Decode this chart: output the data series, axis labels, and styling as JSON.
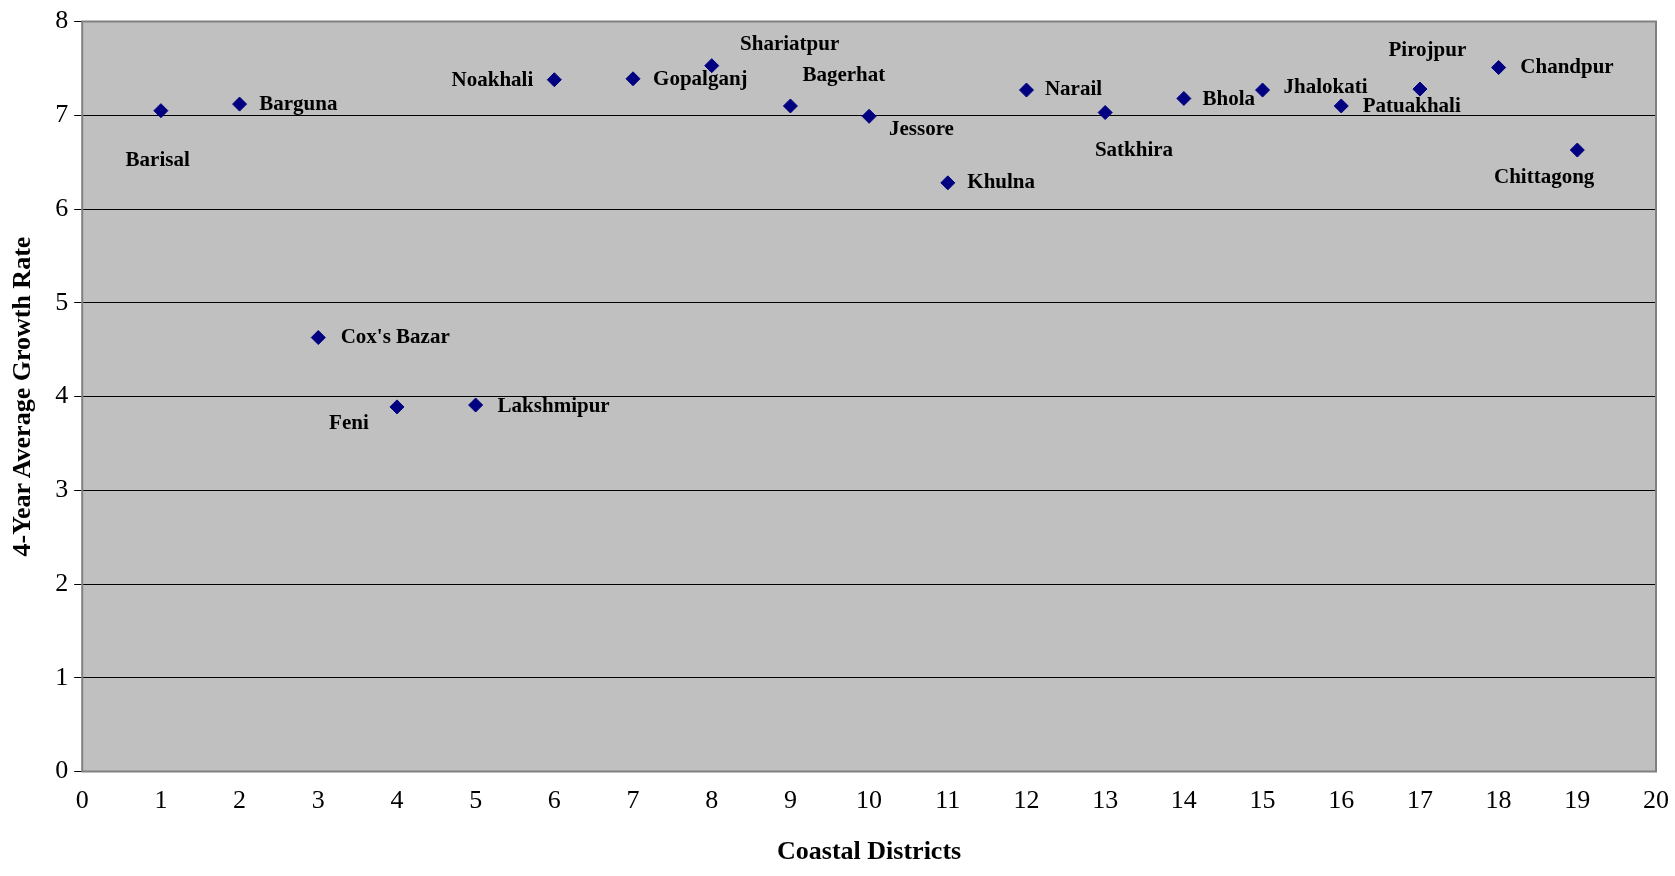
{
  "chart_data": {
    "type": "scatter",
    "xlabel": "Coastal Districts",
    "ylabel": "4-Year Average Growth Rate",
    "x": [
      1,
      2,
      3,
      4,
      5,
      6,
      7,
      8,
      9,
      10,
      11,
      12,
      13,
      14,
      15,
      16,
      17,
      18,
      19
    ],
    "values": [
      7.05,
      7.12,
      4.63,
      3.89,
      3.91,
      7.38,
      7.39,
      7.53,
      7.1,
      6.99,
      6.28,
      7.27,
      7.03,
      7.18,
      7.27,
      7.1,
      7.28,
      7.51,
      6.63
    ],
    "color": "#000080",
    "marker": "diamond",
    "grid": "y",
    "legend": false,
    "xlim": [
      0,
      20
    ],
    "xticks": [
      0,
      1,
      2,
      3,
      4,
      5,
      6,
      7,
      8,
      9,
      10,
      11,
      12,
      13,
      14,
      15,
      16,
      17,
      18,
      19,
      20
    ],
    "ylim": [
      0,
      8
    ],
    "yticks": [
      0,
      1,
      2,
      3,
      4,
      5,
      6,
      7,
      8
    ],
    "annotations": [
      {
        "text": "Barisal",
        "x": 1,
        "y": 7.05
      },
      {
        "text": "Barguna",
        "x": 2,
        "y": 7.12
      },
      {
        "text": "Cox's Bazar",
        "x": 3,
        "y": 4.63
      },
      {
        "text": "Feni",
        "x": 4,
        "y": 3.89
      },
      {
        "text": "Lakshmipur",
        "x": 5,
        "y": 3.91
      },
      {
        "text": "Noakhali",
        "x": 6,
        "y": 7.38
      },
      {
        "text": "Gopalganj",
        "x": 7,
        "y": 7.39
      },
      {
        "text": "Shariatpur",
        "x": 8,
        "y": 7.53
      },
      {
        "text": "Bagerhat",
        "x": 9,
        "y": 7.1
      },
      {
        "text": "Jessore",
        "x": 10,
        "y": 6.99
      },
      {
        "text": "Khulna",
        "x": 11,
        "y": 6.28
      },
      {
        "text": "Narail",
        "x": 12,
        "y": 7.27
      },
      {
        "text": "Satkhira",
        "x": 13,
        "y": 7.03
      },
      {
        "text": "Bhola",
        "x": 14,
        "y": 7.18
      },
      {
        "text": "Jhalokati",
        "x": 15,
        "y": 7.27
      },
      {
        "text": "Patuakhali",
        "x": 16,
        "y": 7.1
      },
      {
        "text": "Pirojpur",
        "x": 17,
        "y": 7.28
      },
      {
        "text": "Chandpur",
        "x": 18,
        "y": 7.51
      },
      {
        "text": "Chittagong",
        "x": 19,
        "y": 6.63
      }
    ]
  }
}
